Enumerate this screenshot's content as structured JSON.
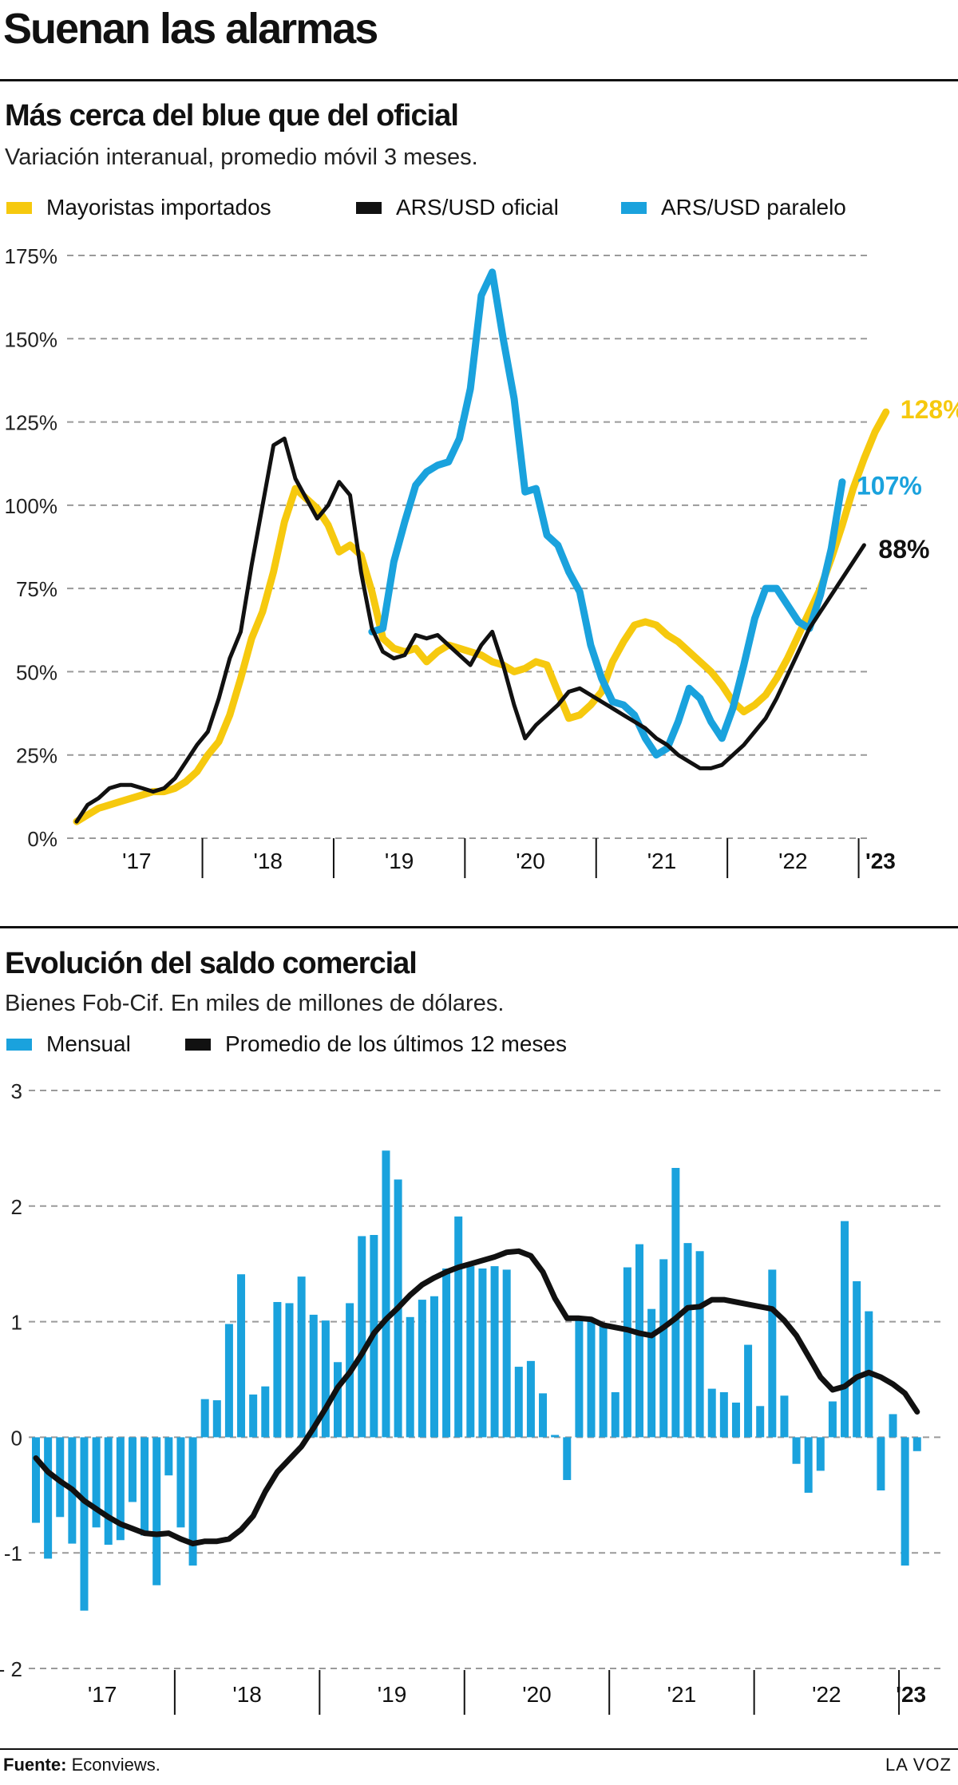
{
  "page": {
    "title": "Suenan las alarmas"
  },
  "colors": {
    "yellow": "#f6c90e",
    "black": "#111111",
    "blue": "#1aa2dd",
    "grid": "#9a9a9a"
  },
  "chart_data": [
    {
      "type": "line",
      "title": "Más cerca del blue que del oficial",
      "subtitle": "Variación interanual, promedio móvil 3 meses.",
      "ylim": [
        0,
        1.75
      ],
      "y_ticks": [
        0,
        0.25,
        0.5,
        0.75,
        1,
        1.25,
        1.5,
        1.75
      ],
      "y_tick_labels": [
        "0%",
        "25%",
        "50%",
        "75%",
        "100%",
        "125%",
        "150%",
        "175%"
      ],
      "grid": true,
      "legend_position": "top",
      "x_tick_labels": [
        "'17",
        "'18",
        "'19",
        "'20",
        "'21",
        "'22",
        "'23"
      ],
      "series": [
        {
          "name": "Mayoristas importados",
          "color_key": "yellow",
          "end_label": "128%",
          "start": [
            2017,
            1
          ],
          "values": [
            0.05,
            0.07,
            0.09,
            0.1,
            0.11,
            0.12,
            0.13,
            0.14,
            0.14,
            0.15,
            0.17,
            0.2,
            0.25,
            0.29,
            0.37,
            0.48,
            0.6,
            0.68,
            0.8,
            0.95,
            1.05,
            1.02,
            0.99,
            0.94,
            0.86,
            0.88,
            0.85,
            0.74,
            0.6,
            0.57,
            0.56,
            0.57,
            0.53,
            0.56,
            0.58,
            0.57,
            0.56,
            0.55,
            0.53,
            0.52,
            0.5,
            0.51,
            0.53,
            0.52,
            0.44,
            0.36,
            0.37,
            0.4,
            0.44,
            0.53,
            0.59,
            0.64,
            0.65,
            0.64,
            0.61,
            0.59,
            0.56,
            0.53,
            0.5,
            0.46,
            0.41,
            0.38,
            0.4,
            0.43,
            0.48,
            0.54,
            0.61,
            0.68,
            0.75,
            0.84,
            0.94,
            1.05,
            1.14,
            1.22,
            1.28
          ]
        },
        {
          "name": "ARS/USD oficial",
          "color_key": "black",
          "end_label": "88%",
          "start": [
            2017,
            1
          ],
          "values": [
            0.05,
            0.1,
            0.12,
            0.15,
            0.16,
            0.16,
            0.15,
            0.14,
            0.15,
            0.18,
            0.23,
            0.28,
            0.32,
            0.42,
            0.54,
            0.62,
            0.82,
            1.0,
            1.18,
            1.2,
            1.08,
            1.02,
            0.96,
            1.0,
            1.07,
            1.03,
            0.8,
            0.63,
            0.56,
            0.54,
            0.55,
            0.61,
            0.6,
            0.61,
            0.58,
            0.55,
            0.52,
            0.58,
            0.62,
            0.52,
            0.4,
            0.3,
            0.34,
            0.37,
            0.4,
            0.44,
            0.45,
            0.43,
            0.41,
            0.39,
            0.37,
            0.35,
            0.33,
            0.3,
            0.28,
            0.25,
            0.23,
            0.21,
            0.21,
            0.22,
            0.25,
            0.28,
            0.32,
            0.36,
            0.42,
            0.49,
            0.56,
            0.63,
            0.68,
            0.73,
            0.78,
            0.83,
            0.88
          ]
        },
        {
          "name": "ARS/USD paralelo",
          "color_key": "blue",
          "end_label": "107%",
          "start": [
            2019,
            4
          ],
          "values": [
            0.62,
            0.63,
            0.83,
            0.95,
            1.06,
            1.1,
            1.12,
            1.13,
            1.2,
            1.35,
            1.63,
            1.7,
            1.5,
            1.32,
            1.04,
            1.05,
            0.91,
            0.88,
            0.8,
            0.74,
            0.58,
            0.48,
            0.41,
            0.4,
            0.37,
            0.3,
            0.25,
            0.27,
            0.35,
            0.45,
            0.42,
            0.35,
            0.3,
            0.39,
            0.52,
            0.66,
            0.75,
            0.75,
            0.7,
            0.65,
            0.63,
            0.73,
            0.87,
            1.07
          ]
        }
      ]
    },
    {
      "type": "bar",
      "title": "Evolución del saldo comercial",
      "subtitle": "Bienes Fob-Cif. En miles de millones de dólares.",
      "ylim": [
        -2,
        3
      ],
      "y_ticks": [
        -2,
        -1,
        0,
        1,
        2,
        3
      ],
      "y_tick_labels": [
        "- 2",
        "-1",
        "0",
        "1",
        "2",
        "3"
      ],
      "grid": true,
      "legend_position": "top",
      "x_tick_labels": [
        "'17",
        "'18",
        "'19",
        "'20",
        "'21",
        "'22",
        "'23"
      ],
      "start": [
        2017,
        1
      ],
      "series": [
        {
          "name": "Mensual",
          "color_key": "blue",
          "values": [
            -0.74,
            -1.05,
            -0.69,
            -0.92,
            -1.5,
            -0.78,
            -0.93,
            -0.89,
            -0.56,
            -0.85,
            -1.28,
            -0.33,
            -0.78,
            -1.11,
            0.33,
            0.32,
            0.98,
            1.41,
            0.37,
            0.44,
            1.17,
            1.16,
            1.39,
            1.06,
            1.01,
            0.65,
            1.16,
            1.74,
            1.75,
            2.48,
            2.23,
            1.04,
            1.19,
            1.22,
            1.46,
            1.91,
            1.48,
            1.46,
            1.48,
            1.45,
            0.61,
            0.66,
            0.38,
            0.02,
            -0.37,
            1.01,
            1.01,
            0.97,
            0.39,
            1.47,
            1.67,
            1.11,
            1.54,
            2.33,
            1.68,
            1.61,
            0.42,
            0.39,
            0.3,
            0.8,
            0.27,
            1.45,
            0.36,
            -0.23,
            -0.48,
            -0.29,
            0.31,
            1.87,
            1.35,
            1.09,
            -0.46,
            0.2,
            -1.11,
            -0.12
          ]
        },
        {
          "name": "Promedio de los últimos 12 meses",
          "color_key": "black",
          "values": [
            -0.18,
            -0.3,
            -0.38,
            -0.45,
            -0.55,
            -0.62,
            -0.69,
            -0.75,
            -0.79,
            -0.83,
            -0.84,
            -0.83,
            -0.88,
            -0.92,
            -0.9,
            -0.9,
            -0.88,
            -0.8,
            -0.68,
            -0.47,
            -0.3,
            -0.19,
            -0.08,
            0.08,
            0.25,
            0.43,
            0.56,
            0.72,
            0.9,
            1.02,
            1.12,
            1.23,
            1.32,
            1.38,
            1.43,
            1.47,
            1.5,
            1.53,
            1.56,
            1.6,
            1.61,
            1.57,
            1.43,
            1.2,
            1.03,
            1.03,
            1.02,
            0.97,
            0.95,
            0.93,
            0.9,
            0.88,
            0.95,
            1.03,
            1.12,
            1.13,
            1.19,
            1.19,
            1.17,
            1.15,
            1.13,
            1.11,
            1.01,
            0.88,
            0.7,
            0.52,
            0.41,
            0.44,
            0.52,
            0.56,
            0.52,
            0.46,
            0.38,
            0.22
          ]
        }
      ]
    }
  ],
  "footer": {
    "source_label": "Fuente:",
    "source_value": " Econviews.",
    "brand": "LA VOZ"
  }
}
